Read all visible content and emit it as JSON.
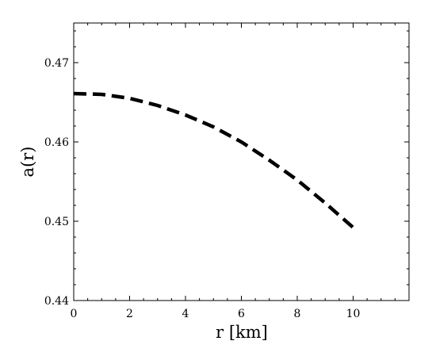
{
  "chart_data": {
    "type": "line",
    "title": "",
    "xlabel": "r [km]",
    "ylabel": "a(r)",
    "xlim": [
      0,
      12
    ],
    "ylim": [
      0.44,
      0.475
    ],
    "grid": false,
    "x_ticks": [
      0,
      2,
      4,
      6,
      8,
      10
    ],
    "x_tick_labels": [
      "0",
      "2",
      "4",
      "6",
      "8",
      "10"
    ],
    "y_ticks": [
      0.44,
      0.45,
      0.46,
      0.47
    ],
    "y_tick_labels": [
      "0.44",
      "0.45",
      "0.46",
      "0.47"
    ],
    "series": [
      {
        "line_style": "dashed",
        "color": "#000000",
        "x": [
          0,
          1,
          2,
          3,
          4,
          5,
          6,
          7,
          8,
          9,
          10.1
        ],
        "y": [
          0.4661,
          0.466,
          0.4655,
          0.4646,
          0.4634,
          0.4619,
          0.46,
          0.4577,
          0.4552,
          0.4523,
          0.4489
        ]
      }
    ]
  }
}
